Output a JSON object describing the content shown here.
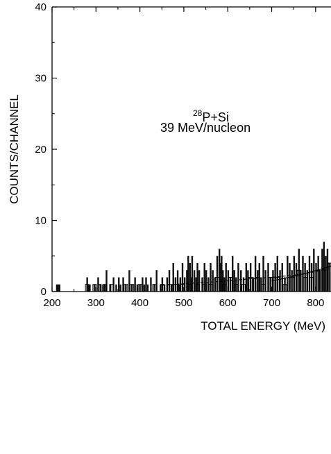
{
  "chart_data": {
    "type": "histogram",
    "xlabel": "TOTAL ENERGY (MeV)",
    "ylabel": "COUNTS/CHANNEL",
    "xlim": [
      200,
      835
    ],
    "ylim": [
      0,
      40
    ],
    "x_ticks": [
      200,
      300,
      400,
      500,
      600,
      700,
      800
    ],
    "y_ticks": [
      0,
      10,
      20,
      30,
      40
    ],
    "annotation": {
      "mass_number": "28",
      "reaction": "P+Si",
      "energy": "39 MeV/nucleon"
    },
    "series": [
      {
        "style": "filled-black-histogram",
        "x": [
          211,
          214,
          217,
          280,
          283,
          286,
          297,
          305,
          310,
          316,
          320,
          324,
          333,
          340,
          346,
          352,
          356,
          362,
          368,
          376,
          382,
          389,
          394,
          400,
          406,
          410,
          414,
          418,
          425,
          433,
          438,
          447,
          451,
          456,
          462,
          467,
          472,
          476,
          481,
          486,
          489,
          492,
          497,
          502,
          507,
          510,
          514,
          516,
          519,
          524,
          528,
          531,
          535,
          542,
          547,
          551,
          556,
          561,
          566,
          571,
          576,
          581,
          583,
          586,
          589,
          592,
          596,
          601,
          606,
          611,
          615,
          619,
          624,
          630,
          636,
          642,
          646,
          652,
          658,
          663,
          668,
          672,
          676,
          681,
          686,
          692,
          697,
          703,
          708,
          713,
          719,
          724,
          730,
          736,
          741,
          746,
          751,
          756,
          762,
          766,
          771,
          776,
          781,
          786,
          791,
          796,
          801,
          806,
          810,
          815,
          819,
          823,
          827,
          831
        ],
        "values": [
          1,
          1,
          1,
          2,
          1,
          1,
          1,
          2,
          1,
          1,
          1,
          3,
          1,
          2,
          1,
          2,
          1,
          2,
          1,
          3,
          1,
          2,
          1,
          1,
          2,
          1,
          2,
          1,
          2,
          1,
          3,
          1,
          2,
          1,
          2,
          3,
          1,
          4,
          2,
          3,
          1,
          2,
          4,
          2,
          3,
          5,
          4,
          2,
          5,
          3,
          2,
          4,
          3,
          2,
          4,
          3,
          2,
          4,
          3,
          2,
          5,
          6,
          4,
          5,
          3,
          2,
          4,
          3,
          2,
          5,
          3,
          2,
          4,
          3,
          2,
          4,
          3,
          4,
          2,
          5,
          3,
          4,
          2,
          5,
          3,
          4,
          2,
          3,
          4,
          5,
          3,
          4,
          2,
          5,
          4,
          3,
          5,
          4,
          6,
          3,
          5,
          4,
          3,
          5,
          4,
          6,
          4,
          5,
          3,
          6,
          7,
          5,
          6,
          4
        ]
      },
      {
        "style": "open-histogram",
        "x": [
          280,
          286,
          297,
          308,
          320,
          335,
          350,
          368,
          382,
          400,
          418,
          433,
          451,
          467,
          481,
          497,
          514,
          531,
          547,
          561,
          576,
          592,
          606,
          619,
          636,
          652,
          668,
          681,
          697,
          713,
          730,
          746,
          762,
          776,
          791,
          806,
          819,
          831
        ],
        "values": [
          1,
          0,
          1,
          1,
          1,
          1,
          0,
          1,
          1,
          1,
          0,
          1,
          1,
          1,
          1,
          1,
          1,
          1,
          1,
          1,
          2,
          1,
          2,
          1,
          1,
          2,
          2,
          1,
          2,
          2,
          1,
          2,
          3,
          2,
          2,
          3,
          3,
          4
        ]
      },
      {
        "style": "dashed-fit",
        "x": [
          450,
          500,
          550,
          600,
          650,
          700,
          750,
          800,
          835
        ],
        "values": [
          0.9,
          1.1,
          1.3,
          1.5,
          1.8,
          2.0,
          2.3,
          2.8,
          3.3
        ]
      },
      {
        "style": "solid-fit",
        "x": [
          700,
          740,
          780,
          810,
          835
        ],
        "values": [
          1.5,
          2.0,
          2.6,
          3.1,
          3.6
        ]
      }
    ]
  }
}
